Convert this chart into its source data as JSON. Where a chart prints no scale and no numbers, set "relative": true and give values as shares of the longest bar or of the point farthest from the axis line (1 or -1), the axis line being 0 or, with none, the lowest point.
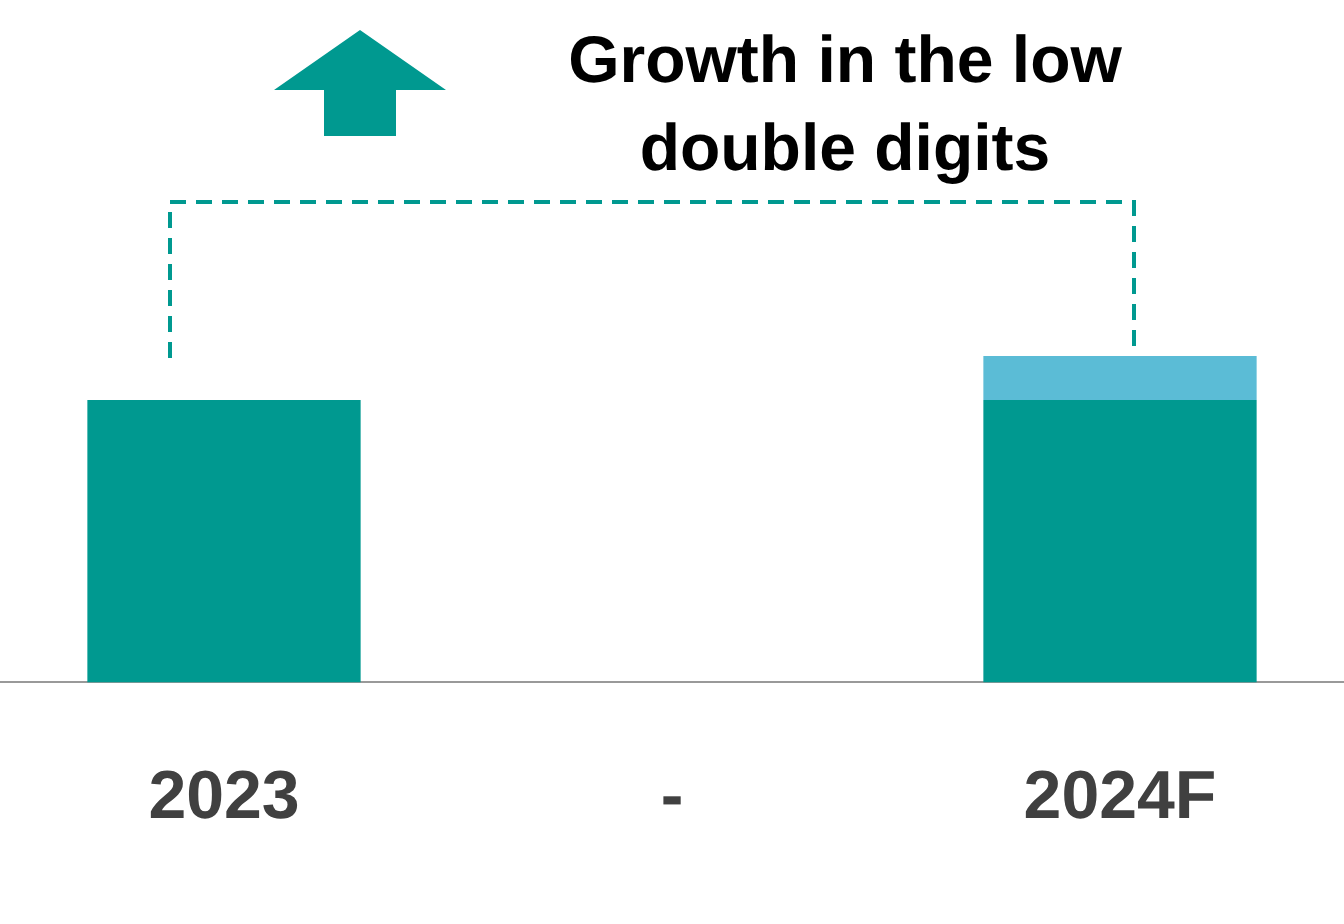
{
  "chart_data": {
    "type": "bar",
    "relative": true,
    "stacked": true,
    "categories": [
      "2023",
      "-",
      "2024F"
    ],
    "series": [
      {
        "color": "#009990",
        "values": [
          0.865,
          null,
          0.865
        ]
      },
      {
        "color": "#5bbcd6",
        "values": [
          0,
          null,
          0.135
        ]
      }
    ],
    "annotations": [
      "Growth in the low double digits"
    ],
    "legend": false,
    "grid": false
  }
}
